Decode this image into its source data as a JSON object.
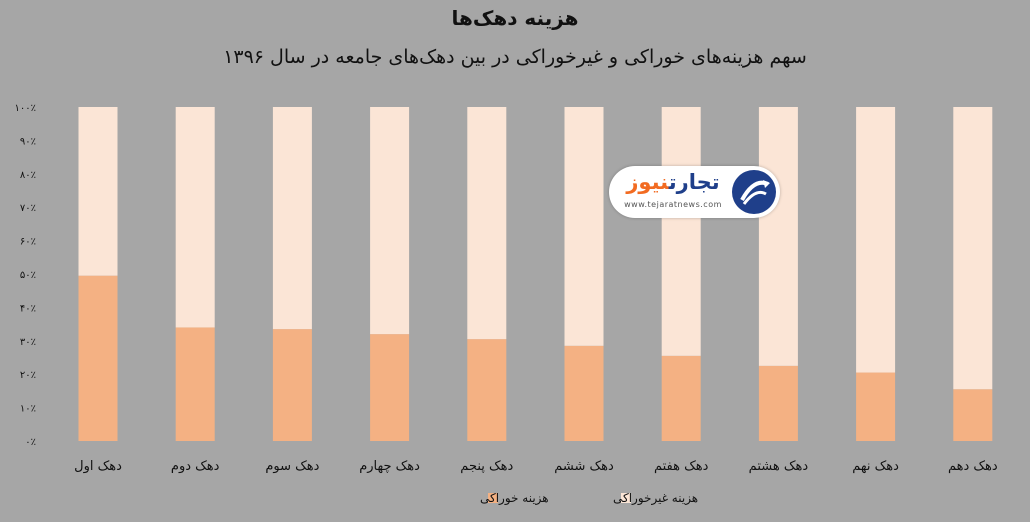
{
  "chart_data": {
    "type": "bar",
    "stacked": true,
    "title": "هزینه دهک‌ها",
    "subtitle": "سهم هزینه‌های خوراکی و غیرخوراکی در بین دهک‌های جامعه در سال ۱۳۹۶",
    "categories": [
      "دهک اول",
      "دهک دوم",
      "دهک سوم",
      "دهک چهارم",
      "دهک پنجم",
      "دهک ششم",
      "دهک هفتم",
      "دهک هشتم",
      "دهک نهم",
      "دهک دهم"
    ],
    "series": [
      {
        "name": "هزینه خوراکی",
        "color": "#f4b183",
        "values": [
          49.5,
          34,
          33.5,
          32,
          30.5,
          28.5,
          25.5,
          22.5,
          20.5,
          15.5
        ]
      },
      {
        "name": "هزینه غیرخوراکی",
        "color": "#fbe5d6",
        "values": [
          50.5,
          66,
          66.5,
          68,
          69.5,
          71.5,
          74.5,
          77.5,
          79.5,
          84.5
        ]
      }
    ],
    "yticks": [
      "۰٪",
      "۱۰٪",
      "۲۰٪",
      "۳۰٪",
      "۴۰٪",
      "۵۰٪",
      "۶۰٪",
      "۷۰٪",
      "۸۰٪",
      "۹۰٪",
      "۱۰۰٪"
    ],
    "ylim": [
      0,
      100
    ],
    "grid": false,
    "legend_position": "bottom"
  },
  "watermark": {
    "brand_part1": "تجارت",
    "brand_part2": "نیوز",
    "url": "www.tejaratnews.com",
    "color": "#1f3f8a",
    "accent": "#f26b21"
  }
}
